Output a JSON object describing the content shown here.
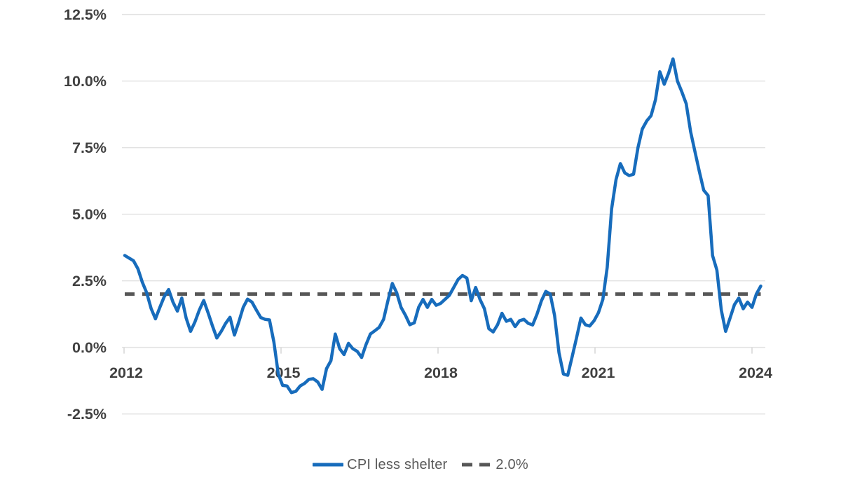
{
  "chart_data": {
    "type": "line",
    "title": "",
    "x_axis": {
      "tick_labels": [
        "2012",
        "2015",
        "2018",
        "2021",
        "2024"
      ],
      "unit": "year"
    },
    "y_axis": {
      "ticks": [
        -2.5,
        0.0,
        2.5,
        5.0,
        7.5,
        10.0,
        12.5
      ],
      "tick_labels": [
        "-2.5%",
        "0.0%",
        "2.5%",
        "5.0%",
        "7.5%",
        "10.0%",
        "12.5%"
      ],
      "range": [
        -2.5,
        12.5
      ],
      "unit": "percent"
    },
    "grid": "horizontal",
    "legend": {
      "position": "bottom",
      "items": [
        "CPI less shelter",
        "2.0%"
      ]
    },
    "reference_line": {
      "label": "2.0%",
      "value": 2.0,
      "style": "dashed",
      "color": "#575757"
    },
    "series": [
      {
        "name": "CPI less shelter",
        "color": "#176CBC",
        "frequency": "monthly",
        "start": "2012-01",
        "end": "2024-02",
        "values": [
          3.45,
          3.35,
          3.25,
          2.95,
          2.45,
          2.05,
          1.46,
          1.07,
          1.5,
          1.9,
          2.17,
          1.7,
          1.36,
          1.85,
          1.1,
          0.6,
          0.95,
          1.4,
          1.76,
          1.3,
          0.8,
          0.35,
          0.6,
          0.9,
          1.13,
          0.46,
          0.95,
          1.5,
          1.81,
          1.7,
          1.4,
          1.12,
          1.05,
          1.03,
          0.2,
          -1.0,
          -1.43,
          -1.45,
          -1.7,
          -1.65,
          -1.45,
          -1.35,
          -1.2,
          -1.18,
          -1.3,
          -1.58,
          -0.8,
          -0.5,
          0.5,
          -0.05,
          -0.27,
          0.15,
          -0.05,
          -0.15,
          -0.38,
          0.1,
          0.5,
          0.62,
          0.75,
          1.05,
          1.75,
          2.4,
          2.05,
          1.5,
          1.2,
          0.85,
          0.92,
          1.5,
          1.8,
          1.5,
          1.8,
          1.58,
          1.65,
          1.8,
          1.95,
          2.25,
          2.55,
          2.7,
          2.6,
          1.75,
          2.25,
          1.8,
          1.45,
          0.7,
          0.58,
          0.85,
          1.28,
          0.98,
          1.05,
          0.78,
          1.0,
          1.05,
          0.9,
          0.84,
          1.25,
          1.75,
          2.1,
          2.0,
          1.2,
          -0.2,
          -1.0,
          -1.05,
          -0.35,
          0.35,
          1.1,
          0.85,
          0.8,
          1.0,
          1.3,
          1.8,
          3.0,
          5.2,
          6.3,
          6.9,
          6.55,
          6.45,
          6.5,
          7.5,
          8.2,
          8.5,
          8.7,
          9.3,
          10.35,
          9.88,
          10.3,
          10.83,
          10.0,
          9.6,
          9.15,
          8.1,
          7.35,
          6.6,
          5.9,
          5.7,
          3.45,
          2.9,
          1.4,
          0.6,
          1.1,
          1.6,
          1.85,
          1.45,
          1.7,
          1.5,
          2.0,
          2.3
        ]
      }
    ],
    "colors": {
      "series_blue": "#176CBC",
      "reference_dash": "#575757",
      "gridline": "#e2e2e2",
      "axis_tick": "#d6d6d6",
      "axis_label": "#404040",
      "legend_text": "#595959"
    }
  }
}
